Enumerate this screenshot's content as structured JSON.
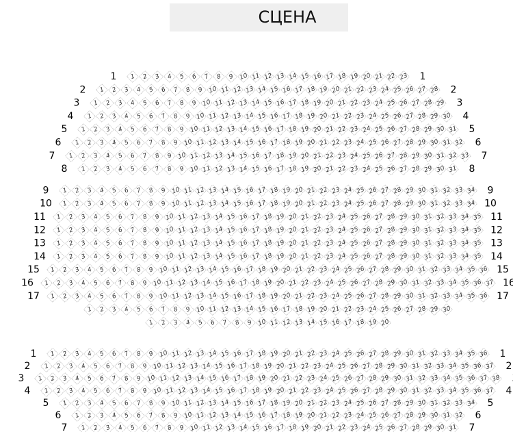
{
  "stage": "СЦЕНА",
  "sections": [
    {
      "rows": [
        {
          "label": 1,
          "seats": [
            1,
            2,
            3,
            4,
            5,
            6,
            7,
            8,
            9,
            10,
            11,
            12,
            13,
            14,
            15,
            16,
            17,
            18,
            19,
            20,
            21,
            22,
            23
          ]
        },
        {
          "label": 2,
          "seats": [
            1,
            2,
            3,
            4,
            5,
            6,
            7,
            8,
            9,
            10,
            11,
            12,
            13,
            14,
            15,
            16,
            17,
            18,
            19,
            20,
            21,
            22,
            23,
            24,
            25,
            26,
            27,
            28
          ]
        },
        {
          "label": 3,
          "seats": [
            1,
            2,
            3,
            4,
            5,
            6,
            7,
            8,
            9,
            10,
            11,
            12,
            13,
            14,
            15,
            16,
            17,
            18,
            19,
            20,
            21,
            22,
            23,
            24,
            25,
            26,
            27,
            28,
            29
          ]
        },
        {
          "label": 4,
          "seats": [
            1,
            2,
            3,
            4,
            5,
            6,
            7,
            8,
            9,
            10,
            11,
            12,
            13,
            14,
            15,
            16,
            17,
            18,
            19,
            20,
            21,
            22,
            23,
            24,
            25,
            26,
            27,
            28,
            29,
            30
          ]
        },
        {
          "label": 5,
          "seats": [
            1,
            2,
            3,
            4,
            5,
            6,
            7,
            8,
            9,
            10,
            11,
            12,
            13,
            14,
            15,
            16,
            17,
            18,
            19,
            20,
            21,
            22,
            23,
            24,
            25,
            26,
            27,
            28,
            29,
            30,
            31
          ]
        },
        {
          "label": 6,
          "seats": [
            1,
            2,
            3,
            4,
            5,
            6,
            7,
            8,
            9,
            10,
            11,
            12,
            13,
            14,
            15,
            16,
            17,
            18,
            19,
            20,
            21,
            22,
            23,
            24,
            25,
            26,
            27,
            28,
            29,
            30,
            31,
            32
          ]
        },
        {
          "label": 7,
          "seats": [
            1,
            2,
            3,
            4,
            5,
            6,
            7,
            8,
            9,
            10,
            11,
            12,
            13,
            14,
            15,
            16,
            17,
            18,
            19,
            20,
            21,
            22,
            23,
            24,
            25,
            26,
            27,
            28,
            29,
            30,
            31,
            32,
            33
          ]
        },
        {
          "label": 8,
          "seats": [
            1,
            2,
            3,
            4,
            5,
            6,
            7,
            8,
            9,
            10,
            11,
            12,
            13,
            14,
            15,
            16,
            17,
            18,
            19,
            20,
            21,
            22,
            23,
            24,
            25,
            26,
            27,
            28,
            29,
            30,
            31
          ]
        },
        {
          "label": 9,
          "seats": [
            1,
            2,
            3,
            4,
            5,
            6,
            7,
            8,
            9,
            10,
            11,
            12,
            13,
            14,
            15,
            16,
            17,
            18,
            19,
            20,
            21,
            22,
            23,
            24,
            25,
            26,
            27,
            28,
            29,
            30,
            31,
            32,
            33,
            34
          ]
        },
        {
          "label": 10,
          "seats": [
            1,
            2,
            3,
            4,
            5,
            6,
            7,
            8,
            9,
            10,
            11,
            12,
            13,
            14,
            15,
            16,
            17,
            18,
            19,
            20,
            21,
            22,
            23,
            24,
            25,
            26,
            27,
            28,
            29,
            30,
            31,
            32,
            33,
            34
          ]
        },
        {
          "label": 11,
          "seats": [
            1,
            2,
            3,
            4,
            5,
            6,
            7,
            8,
            9,
            10,
            11,
            12,
            13,
            14,
            15,
            16,
            17,
            18,
            19,
            20,
            21,
            22,
            23,
            24,
            25,
            26,
            27,
            28,
            29,
            30,
            31,
            32,
            33,
            34,
            35
          ]
        },
        {
          "label": 12,
          "seats": [
            1,
            2,
            3,
            4,
            5,
            6,
            7,
            8,
            9,
            10,
            11,
            12,
            13,
            14,
            15,
            16,
            17,
            18,
            19,
            20,
            21,
            22,
            23,
            24,
            25,
            26,
            27,
            28,
            29,
            30,
            31,
            32,
            33,
            34,
            35
          ]
        },
        {
          "label": 13,
          "seats": [
            1,
            2,
            3,
            4,
            5,
            6,
            7,
            8,
            9,
            10,
            11,
            12,
            13,
            14,
            15,
            16,
            17,
            18,
            19,
            20,
            21,
            22,
            23,
            24,
            25,
            26,
            27,
            28,
            29,
            30,
            31,
            32,
            33,
            34,
            35
          ]
        },
        {
          "label": 14,
          "seats": [
            1,
            2,
            3,
            4,
            5,
            6,
            7,
            8,
            9,
            10,
            11,
            12,
            13,
            14,
            15,
            16,
            17,
            18,
            19,
            20,
            21,
            22,
            23,
            24,
            25,
            26,
            27,
            28,
            29,
            30,
            31,
            32,
            33,
            34,
            35
          ]
        },
        {
          "label": 15,
          "seats": [
            1,
            2,
            3,
            4,
            5,
            6,
            7,
            8,
            9,
            10,
            11,
            12,
            13,
            14,
            15,
            16,
            17,
            18,
            19,
            20,
            21,
            22,
            23,
            24,
            25,
            26,
            27,
            28,
            29,
            30,
            31,
            32,
            33,
            34,
            35,
            36
          ]
        },
        {
          "label": 16,
          "seats": [
            1,
            2,
            3,
            4,
            5,
            6,
            7,
            8,
            9,
            10,
            11,
            12,
            13,
            14,
            15,
            16,
            17,
            18,
            19,
            20,
            21,
            22,
            23,
            24,
            25,
            26,
            27,
            28,
            29,
            30,
            31,
            32,
            33,
            34,
            35,
            36,
            37
          ]
        },
        {
          "label": 17,
          "seats": [
            1,
            2,
            3,
            4,
            5,
            6,
            7,
            8,
            9,
            10,
            11,
            12,
            13,
            14,
            15,
            16,
            17,
            18,
            19,
            20,
            21,
            22,
            23,
            24,
            25,
            26,
            27,
            28,
            29,
            30,
            31,
            32,
            33,
            34,
            35,
            36
          ]
        },
        {
          "seats": [
            1,
            2,
            3,
            4,
            5,
            6,
            7,
            8,
            9,
            10,
            11,
            12,
            13,
            14,
            15,
            16,
            17,
            18,
            19,
            20,
            21,
            22,
            23,
            24,
            25,
            26,
            27,
            28,
            29,
            30
          ]
        },
        {
          "seats": [
            1,
            2,
            3,
            4,
            5,
            6,
            7,
            8,
            9,
            10,
            11,
            12,
            13,
            14,
            15,
            16,
            17,
            18,
            19,
            20
          ]
        }
      ]
    },
    {
      "rows": [
        {
          "label": 1,
          "seats": [
            1,
            2,
            3,
            4,
            5,
            6,
            7,
            8,
            9,
            10,
            11,
            12,
            13,
            14,
            15,
            16,
            17,
            18,
            19,
            20,
            21,
            22,
            23,
            24,
            25,
            26,
            27,
            28,
            29,
            30,
            31,
            32,
            33,
            34,
            35,
            36
          ]
        },
        {
          "label": 2,
          "seats": [
            1,
            2,
            3,
            4,
            5,
            6,
            7,
            8,
            9,
            10,
            11,
            12,
            13,
            14,
            15,
            16,
            17,
            18,
            19,
            20,
            21,
            22,
            23,
            24,
            25,
            26,
            27,
            28,
            29,
            30,
            31,
            32,
            33,
            34,
            35,
            36,
            37
          ]
        },
        {
          "label": 3,
          "seats": [
            1,
            2,
            3,
            4,
            5,
            6,
            7,
            8,
            9,
            10,
            11,
            12,
            13,
            14,
            15,
            16,
            17,
            18,
            19,
            20,
            21,
            22,
            23,
            24,
            25,
            26,
            27,
            28,
            29,
            30,
            31,
            32,
            33,
            34,
            35,
            36,
            37,
            38
          ]
        },
        {
          "label": 4,
          "seats": [
            1,
            2,
            3,
            4,
            5,
            6,
            7,
            8,
            9,
            10,
            11,
            12,
            13,
            14,
            15,
            16,
            17,
            18,
            19,
            20,
            21,
            22,
            23,
            24,
            25,
            26,
            27,
            28,
            29,
            30,
            31,
            32,
            33,
            34,
            35,
            36,
            37
          ]
        },
        {
          "label": 5,
          "seats": [
            1,
            2,
            3,
            4,
            5,
            6,
            7,
            8,
            9,
            10,
            11,
            12,
            13,
            14,
            15,
            16,
            17,
            18,
            19,
            20,
            21,
            22,
            23,
            24,
            25,
            26,
            27,
            28,
            29,
            30,
            31,
            32,
            33,
            34
          ]
        },
        {
          "label": 6,
          "seats": [
            1,
            2,
            3,
            4,
            5,
            6,
            7,
            8,
            9,
            10,
            11,
            12,
            13,
            14,
            15,
            16,
            17,
            18,
            19,
            20,
            21,
            22,
            23,
            24,
            25,
            26,
            27,
            28,
            29,
            30,
            31,
            32
          ]
        },
        {
          "label": 7,
          "seats": [
            1,
            2,
            3,
            4,
            5,
            6,
            7,
            8,
            9,
            10,
            11,
            12,
            13,
            14,
            15,
            16,
            17,
            18,
            19,
            20,
            21,
            22,
            23,
            24,
            25,
            26,
            27,
            28,
            29,
            30,
            31
          ]
        }
      ]
    }
  ]
}
